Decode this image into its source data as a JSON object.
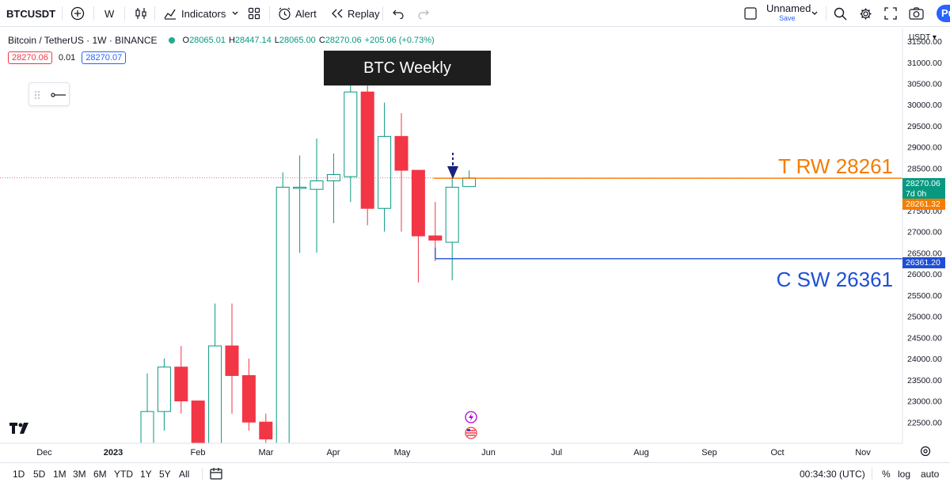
{
  "toolbar": {
    "symbol": "BTCUSDT",
    "interval": "W",
    "indicators_label": "Indicators",
    "alert_label": "Alert",
    "replay_label": "Replay",
    "layout_name": "Unnamed",
    "save_label": "Save",
    "publish_label": "Pu"
  },
  "legend": {
    "title": "Bitcoin / TetherUS · 1W · BINANCE",
    "open_label": "O",
    "open": "28065.01",
    "high_label": "H",
    "high": "28447.14",
    "low_label": "L",
    "low": "28065.00",
    "close_label": "C",
    "close": "28270.06",
    "change": "+205.06 (+0.73%)",
    "sell_price": "28270.06",
    "spread": "0.01",
    "buy_price": "28270.07"
  },
  "annotations": {
    "title": "BTC Weekly",
    "resistance_label": "T RW 28261",
    "support_label": "C SW 26361"
  },
  "price_scale": {
    "currency": "USDT",
    "current_price": "28270.06",
    "countdown": "7d 0h",
    "resistance_price": "28261.32",
    "support_price": "26361.20"
  },
  "bottom": {
    "ranges": [
      "1D",
      "5D",
      "1M",
      "3M",
      "6M",
      "YTD",
      "1Y",
      "5Y",
      "All"
    ],
    "clock": "00:34:30 (UTC)",
    "percent_label": "%",
    "log_label": "log",
    "auto_label": "auto"
  },
  "colors": {
    "up": "#089981",
    "down": "#f23645",
    "resistance": "#f57c00",
    "support": "#1e4fd6",
    "accent": "#2962ff"
  },
  "chart_data": {
    "type": "candlestick",
    "title": "BTC Weekly",
    "y_range": [
      22000,
      31800
    ],
    "y_ticks": [
      22500,
      23000,
      23500,
      24000,
      24500,
      25000,
      25500,
      26000,
      26500,
      27000,
      27500,
      28000,
      28500,
      29000,
      29500,
      30000,
      30500,
      31000,
      31500
    ],
    "x_labels": [
      "Dec",
      "2023",
      "Feb",
      "Mar",
      "Apr",
      "May",
      "Jun",
      "Jul",
      "Aug",
      "Sep",
      "Oct",
      "Nov"
    ],
    "candles": [
      {
        "o": 22000,
        "h": 23650,
        "l": 22000,
        "c": 22750
      },
      {
        "o": 22750,
        "h": 24000,
        "l": 22300,
        "c": 23800
      },
      {
        "o": 23800,
        "h": 24300,
        "l": 22700,
        "c": 23000
      },
      {
        "o": 23000,
        "h": 23000,
        "l": 22000,
        "c": 22000
      },
      {
        "o": 22000,
        "h": 25300,
        "l": 22000,
        "c": 24300
      },
      {
        "o": 24300,
        "h": 25300,
        "l": 22700,
        "c": 23600
      },
      {
        "o": 23600,
        "h": 24000,
        "l": 22300,
        "c": 22500
      },
      {
        "o": 22500,
        "h": 22700,
        "l": 22000,
        "c": 22100
      },
      {
        "o": 22000,
        "h": 28400,
        "l": 22000,
        "c": 28050
      },
      {
        "o": 28050,
        "h": 28800,
        "l": 26500,
        "c": 28050
      },
      {
        "o": 28000,
        "h": 29200,
        "l": 26500,
        "c": 28200
      },
      {
        "o": 28200,
        "h": 28850,
        "l": 27200,
        "c": 28350
      },
      {
        "o": 28300,
        "h": 30600,
        "l": 27700,
        "c": 30300
      },
      {
        "o": 30300,
        "h": 30450,
        "l": 27150,
        "c": 27550
      },
      {
        "o": 27550,
        "h": 30050,
        "l": 27000,
        "c": 29250
      },
      {
        "o": 29250,
        "h": 29800,
        "l": 27000,
        "c": 28450
      },
      {
        "o": 28450,
        "h": 28450,
        "l": 25800,
        "c": 26900
      },
      {
        "o": 26900,
        "h": 27700,
        "l": 26300,
        "c": 26800
      },
      {
        "o": 26750,
        "h": 28300,
        "l": 25850,
        "c": 28050
      },
      {
        "o": 28065,
        "h": 28447,
        "l": 28065,
        "c": 28270
      }
    ],
    "resistance": 28261.32,
    "support": 26361.2
  }
}
